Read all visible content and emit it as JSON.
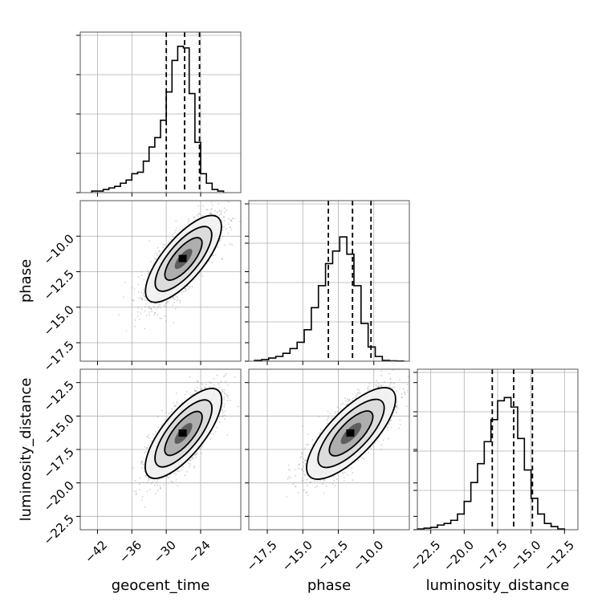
{
  "chart_data": {
    "type": "corner",
    "parameters": [
      "geocent_time",
      "phase",
      "luminosity_distance"
    ],
    "ranges": {
      "geocent_time": [
        -45,
        -17
      ],
      "phase": [
        -18.8,
        -7.5
      ],
      "luminosity_distance": [
        -23.5,
        -11.5
      ]
    },
    "ticks": {
      "geocent_time": [
        -42,
        -36,
        -30,
        -24
      ],
      "phase_x": [
        -17.5,
        -15.0,
        -12.5,
        -10.0
      ],
      "phase_y": [
        -10.0,
        -12.5,
        -15.0,
        -17.5
      ],
      "luminosity_distance_x": [
        -22.5,
        -20.0,
        -17.5,
        -15.0,
        -12.5
      ],
      "luminosity_distance_y": [
        -12.5,
        -15.0,
        -17.5,
        -20.0,
        -22.5
      ]
    },
    "tick_labels": {
      "geocent_time": [
        "−42",
        "−36",
        "−30",
        "−24"
      ],
      "phase_x": [
        "−17.5",
        "−15.0",
        "−12.5",
        "−10.0"
      ],
      "phase_y": [
        "−10.0",
        "−12.5",
        "−15.0",
        "−17.5"
      ],
      "luminosity_distance_x": [
        "−22.5",
        "−20.0",
        "−17.5",
        "−15.0",
        "−12.5"
      ],
      "luminosity_distance_y": [
        "−12.5",
        "−15.0",
        "−17.5",
        "−20.0",
        "−22.5"
      ]
    },
    "quantiles": {
      "geocent_time": [
        -30.0,
        -26.8,
        -24.2
      ],
      "phase": [
        -13.2,
        -11.5,
        -10.2
      ],
      "luminosity_distance": [
        -17.9,
        -16.3,
        -14.9
      ]
    },
    "histograms": {
      "geocent_time": {
        "bin_edges_start": -43,
        "bin_width": 1.0,
        "counts": [
          0.01,
          0.01,
          0.02,
          0.03,
          0.04,
          0.06,
          0.08,
          0.12,
          0.13,
          0.2,
          0.29,
          0.35,
          0.46,
          0.64,
          0.84,
          0.93,
          0.92,
          0.63,
          0.32,
          0.12,
          0.06,
          0.02,
          0.01
        ]
      },
      "phase": {
        "bin_edges_start": -18.4,
        "bin_width": 0.5,
        "counts": [
          0.005,
          0.01,
          0.02,
          0.03,
          0.05,
          0.08,
          0.12,
          0.2,
          0.34,
          0.48,
          0.62,
          0.7,
          0.79,
          0.68,
          0.48,
          0.24,
          0.09,
          0.03,
          0.005,
          0.002,
          0.001
        ]
      },
      "luminosity_distance": {
        "bin_edges_start": -23.5,
        "bin_width": 0.5,
        "counts": [
          0.005,
          0.01,
          0.015,
          0.03,
          0.04,
          0.06,
          0.1,
          0.18,
          0.3,
          0.42,
          0.56,
          0.7,
          0.82,
          0.84,
          0.78,
          0.58,
          0.38,
          0.2,
          0.1,
          0.04,
          0.02,
          0.005
        ]
      }
    },
    "colors": {
      "line": "#000000",
      "grid": "#b0b0b0",
      "scatter": "#9a9a9a"
    }
  }
}
